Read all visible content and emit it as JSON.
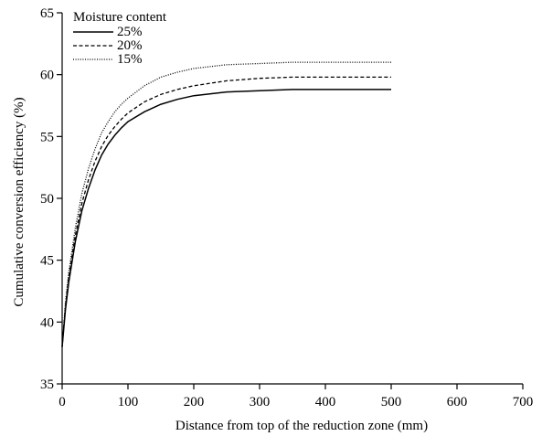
{
  "chart_data": {
    "type": "line",
    "xlabel": "Distance from top of the reduction zone (mm)",
    "ylabel": "Cumulative conversion efficiency (%)",
    "xlim": [
      0,
      700
    ],
    "ylim": [
      35,
      65
    ],
    "xticks": [
      0,
      100,
      200,
      300,
      400,
      500,
      600,
      700
    ],
    "yticks": [
      35,
      40,
      45,
      50,
      55,
      60,
      65
    ],
    "grid": false,
    "legend": {
      "title": "Moisture content",
      "placement": "top-left"
    },
    "series": [
      {
        "name": "25%",
        "dash": "solid",
        "x": [
          0,
          5,
          10,
          20,
          30,
          40,
          50,
          60,
          70,
          80,
          90,
          100,
          125,
          150,
          175,
          200,
          250,
          300,
          350,
          400,
          450,
          500
        ],
        "y": [
          38.0,
          41.0,
          43.2,
          46.5,
          49.0,
          50.8,
          52.3,
          53.5,
          54.4,
          55.1,
          55.7,
          56.2,
          57.0,
          57.6,
          58.0,
          58.3,
          58.6,
          58.7,
          58.8,
          58.8,
          58.8,
          58.8
        ]
      },
      {
        "name": "20%",
        "dash": "dashed",
        "x": [
          0,
          5,
          10,
          20,
          30,
          40,
          50,
          60,
          70,
          80,
          90,
          100,
          125,
          150,
          175,
          200,
          250,
          300,
          350,
          400,
          450,
          500
        ],
        "y": [
          38.0,
          41.3,
          43.6,
          47.0,
          49.6,
          51.5,
          53.0,
          54.2,
          55.1,
          55.8,
          56.4,
          56.9,
          57.8,
          58.4,
          58.8,
          59.1,
          59.5,
          59.7,
          59.8,
          59.8,
          59.8,
          59.8
        ]
      },
      {
        "name": "15%",
        "dash": "dotted",
        "x": [
          0,
          5,
          10,
          20,
          30,
          40,
          50,
          60,
          70,
          80,
          90,
          100,
          125,
          150,
          175,
          200,
          250,
          300,
          350,
          400,
          450,
          500
        ],
        "y": [
          38.0,
          41.6,
          44.0,
          47.6,
          50.4,
          52.4,
          54.0,
          55.3,
          56.2,
          57.0,
          57.6,
          58.1,
          59.1,
          59.8,
          60.2,
          60.5,
          60.8,
          60.9,
          61.0,
          61.0,
          61.0,
          61.0
        ]
      }
    ]
  }
}
